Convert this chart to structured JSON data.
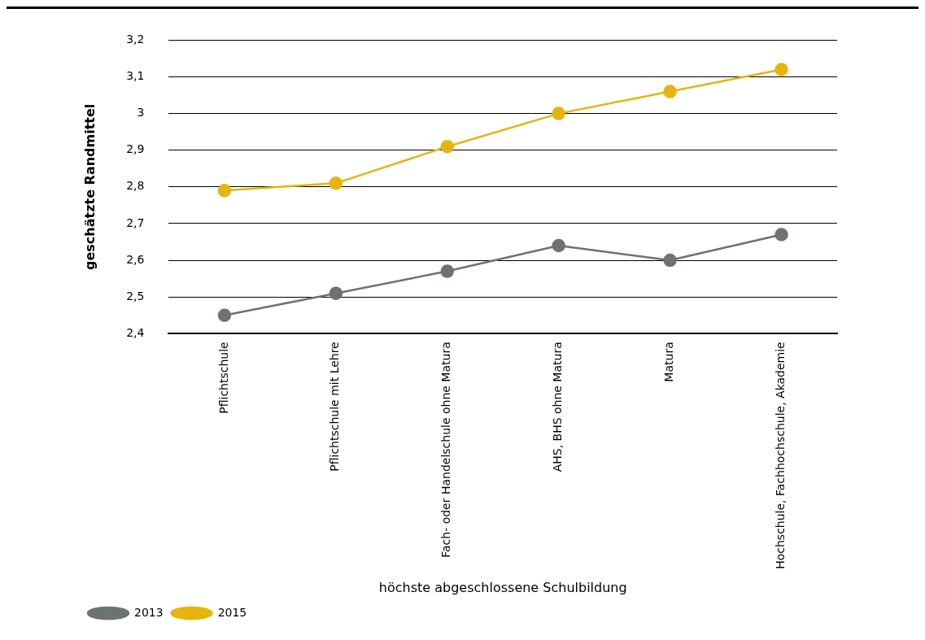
{
  "chart_data": {
    "type": "line",
    "xlabel": "höchste abgeschlossene Schulbildung",
    "ylabel": "geschätzte Randmittel",
    "categories": [
      "Pflichtschule",
      "Pflichtschule mit Lehre",
      "Fach- oder Handelschule ohne Matura",
      "AHS, BHS ohne Matura",
      "Matura",
      "Hochschule, Fachhochschule, Akademie"
    ],
    "series": [
      {
        "name": "2013",
        "color": "#6b7470",
        "values": [
          2.45,
          2.51,
          2.57,
          2.64,
          2.6,
          2.67
        ]
      },
      {
        "name": "2015",
        "color": "#e5b50f",
        "values": [
          2.79,
          2.81,
          2.91,
          3.0,
          3.06,
          3.12
        ]
      }
    ],
    "ylim": [
      2.4,
      3.2
    ],
    "yticks": [
      {
        "value": 2.4,
        "label": "2,4"
      },
      {
        "value": 2.5,
        "label": "2,5"
      },
      {
        "value": 2.6,
        "label": "2,6"
      },
      {
        "value": 2.7,
        "label": "2,7"
      },
      {
        "value": 2.8,
        "label": "2,8"
      },
      {
        "value": 2.9,
        "label": "2,9"
      },
      3,
      {
        "value": 3.1,
        "label": "3,1"
      },
      {
        "value": 3.2,
        "label": "3,2"
      }
    ],
    "grid": "y",
    "legend": "bottom left",
    "marker": "circle",
    "line_style": "solid"
  }
}
